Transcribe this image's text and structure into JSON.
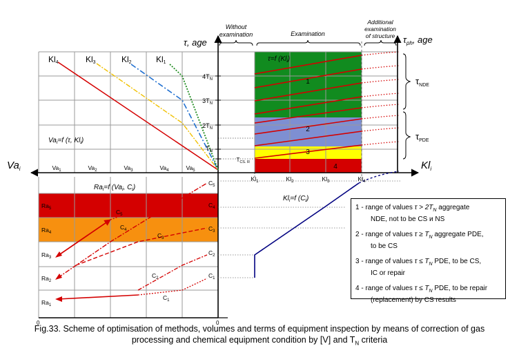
{
  "caption": {
    "line1": "Fig.33. Scheme of optimisation of methods, volumes and terms of equipment inspection by means of correction of gas",
    "line2": "processing and chemical equipment condition by [V] and T",
    "line2_sub": "N",
    "line2_end": " criteria"
  },
  "axes": {
    "tau_age": "τ, age",
    "tau_ph": "τ",
    "tau_ph_sub": "ph",
    "tau_ph_rest": ", age",
    "va": "Va",
    "va_sub": "i",
    "kl": "Kl",
    "kl_sub": "i",
    "zero_left": "0",
    "zero_right": "0"
  },
  "top_headers": {
    "without_1": "Without",
    "without_2": "examination",
    "examination": "Examination",
    "additional_1": "Additional",
    "additional_2": "examination",
    "additional_3": "of structure"
  },
  "tau_brackets": {
    "nde": "τ",
    "nde_sub": "NDE",
    "pde": "τ",
    "pde_sub": "PDE"
  },
  "tau_ticks": [
    {
      "pre": "4T",
      "sub": "N"
    },
    {
      "pre": "3T",
      "sub": "N"
    },
    {
      "pre": "2T",
      "sub": "N"
    },
    {
      "pre": "T",
      "sub": "N"
    },
    {
      "pre": "T",
      "sub": "CS. R"
    }
  ],
  "kl_curve_labels": [
    {
      "pre": "Kl",
      "sub": "4"
    },
    {
      "pre": "Kl",
      "sub": "3"
    },
    {
      "pre": "Kl",
      "sub": "2"
    },
    {
      "pre": "Kl",
      "sub": "1"
    }
  ],
  "va_ticks": [
    {
      "pre": "Va",
      "sub": "1"
    },
    {
      "pre": "Va",
      "sub": "2"
    },
    {
      "pre": "Va",
      "sub": "3"
    },
    {
      "pre": "Va",
      "sub": "4"
    },
    {
      "pre": "Va",
      "sub": "5"
    }
  ],
  "kl_ticks": [
    {
      "pre": "Kl",
      "sub": "1"
    },
    {
      "pre": "Kl",
      "sub": "2"
    },
    {
      "pre": "Kl",
      "sub": "3"
    },
    {
      "pre": "Kl",
      "sub": "4"
    }
  ],
  "ra_ticks": [
    {
      "pre": "Ra",
      "sub": "5"
    },
    {
      "pre": "Ra",
      "sub": "4"
    },
    {
      "pre": "Ra",
      "sub": "3"
    },
    {
      "pre": "Ra",
      "sub": "2"
    },
    {
      "pre": "Ra",
      "sub": "1"
    }
  ],
  "c_ticks": [
    {
      "pre": "C",
      "sub": "5"
    },
    {
      "pre": "C",
      "sub": "4"
    },
    {
      "pre": "C",
      "sub": "3"
    },
    {
      "pre": "C",
      "sub": "2"
    },
    {
      "pre": "C",
      "sub": "1"
    }
  ],
  "c_line_labels": [
    {
      "pre": "C",
      "sub": "5"
    },
    {
      "pre": "C",
      "sub": "4"
    },
    {
      "pre": "C",
      "sub": "3"
    },
    {
      "pre": "C",
      "sub": "2"
    },
    {
      "pre": "C",
      "sub": "1"
    }
  ],
  "formulas": {
    "va_f": "Va",
    "va_f_sub": "i",
    "va_f_rest": "=f (τ, Kl",
    "va_f_sub2": "i",
    "va_f_end": ")",
    "tau_f": "τ=f (Kl",
    "tau_f_sub": "i",
    "tau_f_end": ")",
    "ra_f": "Ra",
    "ra_f_sub": "i",
    "ra_f_rest": "=f (Va",
    "ra_f_sub2": "i",
    "ra_f_mid": ", C",
    "ra_f_sub3": "i",
    "ra_f_end": ")",
    "kl_f": "Kl",
    "kl_f_sub": "i",
    "kl_f_rest": "=f (C",
    "kl_f_sub2": "i",
    "kl_f_end": ")"
  },
  "zones": [
    {
      "num": "1",
      "color": "#118b1f"
    },
    {
      "num": "2",
      "color": "#7e8fd2"
    },
    {
      "num": "3",
      "color": "#ffff00"
    },
    {
      "num": "4",
      "color": "#d40000"
    }
  ],
  "ra_bands": [
    {
      "name": "ra5-band",
      "color": "#d40000"
    },
    {
      "name": "ra4-band",
      "color": "#f7900f"
    }
  ],
  "legend": [
    {
      "a": "1 - range of values ",
      "b": "τ > 2T",
      "bs": "N",
      "c": " aggregate",
      "d": "NDE,  not to be CS и NS"
    },
    {
      "a": "2 - range of values ",
      "b": "τ ≥ T",
      "bs": "N",
      "c": " aggregate PDE,",
      "d": "to be CS"
    },
    {
      "a": "3 - range of values ",
      "b": "τ ≤ T",
      "bs": "N",
      "c": " PDE, to be CS,",
      "d": "IC or repair"
    },
    {
      "a": "4 - range of values ",
      "b": "τ ≤ T",
      "bs": "N",
      "c": " PDE, to be repair",
      "d": "(replacement) by CS results"
    }
  ],
  "colors": {
    "red": "#d40000",
    "green": "#118b1f",
    "blue": "#7e8fd2",
    "yellow": "#ffff00",
    "orange": "#f7900f",
    "navy": "#000080",
    "kl2_blue": "#1f6fd0",
    "kl1_green": "#1c8a1c",
    "kl3_yellow": "#f0c000"
  }
}
